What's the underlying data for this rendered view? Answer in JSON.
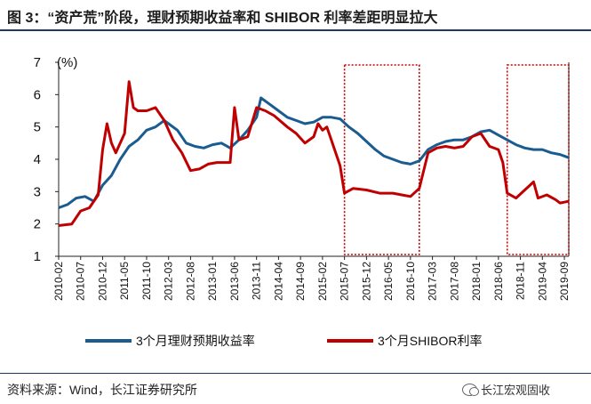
{
  "title": "图 3：“资产荒”阶段，理财预期收益率和 SHIBOR 利率差距明显拉大",
  "source": "资料来源：Wind，长江证券研究所",
  "watermark": "长江宏观固收",
  "chart_data": {
    "type": "line",
    "unit_label": "(%)",
    "ylim": [
      1,
      7
    ],
    "yticks": [
      1,
      2,
      3,
      4,
      5,
      6,
      7
    ],
    "x_start": "2010-02",
    "x_end": "2019-10",
    "xticks": [
      "2010-02",
      "2010-07",
      "2010-12",
      "2011-05",
      "2011-10",
      "2012-03",
      "2012-08",
      "2013-01",
      "2013-06",
      "2013-11",
      "2014-04",
      "2014-09",
      "2015-02",
      "2015-07",
      "2015-12",
      "2016-05",
      "2016-10",
      "2017-03",
      "2017-08",
      "2018-01",
      "2018-06",
      "2018-11",
      "2019-04",
      "2019-09"
    ],
    "highlight_ranges": [
      {
        "from": "2015-07",
        "to": "2016-12"
      },
      {
        "from": "2018-08",
        "to": "2019-10"
      }
    ],
    "colors": {
      "wealth": "#1a5c8f",
      "shibor": "#c00000",
      "highlight": "#c00000"
    },
    "series": [
      {
        "name": "3个月理财预期收益率",
        "color": "#1a5c8f",
        "points": [
          [
            "2010-02",
            2.5
          ],
          [
            "2010-04",
            2.6
          ],
          [
            "2010-06",
            2.8
          ],
          [
            "2010-08",
            2.85
          ],
          [
            "2010-10",
            2.7
          ],
          [
            "2010-12",
            3.2
          ],
          [
            "2011-02",
            3.5
          ],
          [
            "2011-04",
            4.0
          ],
          [
            "2011-06",
            4.4
          ],
          [
            "2011-08",
            4.6
          ],
          [
            "2011-10",
            4.9
          ],
          [
            "2011-12",
            5.0
          ],
          [
            "2012-02",
            5.2
          ],
          [
            "2012-03",
            5.1
          ],
          [
            "2012-05",
            4.9
          ],
          [
            "2012-07",
            4.5
          ],
          [
            "2012-09",
            4.4
          ],
          [
            "2012-11",
            4.35
          ],
          [
            "2013-01",
            4.45
          ],
          [
            "2013-03",
            4.5
          ],
          [
            "2013-05",
            4.35
          ],
          [
            "2013-07",
            4.6
          ],
          [
            "2013-09",
            4.9
          ],
          [
            "2013-11",
            5.3
          ],
          [
            "2013-12",
            5.9
          ],
          [
            "2014-02",
            5.7
          ],
          [
            "2014-04",
            5.5
          ],
          [
            "2014-06",
            5.3
          ],
          [
            "2014-08",
            5.2
          ],
          [
            "2014-10",
            5.1
          ],
          [
            "2014-12",
            5.15
          ],
          [
            "2015-02",
            5.3
          ],
          [
            "2015-04",
            5.3
          ],
          [
            "2015-06",
            5.25
          ],
          [
            "2015-08",
            5.0
          ],
          [
            "2015-10",
            4.8
          ],
          [
            "2015-12",
            4.55
          ],
          [
            "2016-02",
            4.3
          ],
          [
            "2016-04",
            4.1
          ],
          [
            "2016-06",
            4.0
          ],
          [
            "2016-08",
            3.9
          ],
          [
            "2016-10",
            3.85
          ],
          [
            "2016-12",
            3.95
          ],
          [
            "2017-02",
            4.3
          ],
          [
            "2017-04",
            4.45
          ],
          [
            "2017-06",
            4.55
          ],
          [
            "2017-08",
            4.6
          ],
          [
            "2017-10",
            4.6
          ],
          [
            "2017-12",
            4.7
          ],
          [
            "2018-02",
            4.85
          ],
          [
            "2018-04",
            4.9
          ],
          [
            "2018-06",
            4.75
          ],
          [
            "2018-08",
            4.6
          ],
          [
            "2018-10",
            4.45
          ],
          [
            "2018-12",
            4.35
          ],
          [
            "2019-02",
            4.3
          ],
          [
            "2019-04",
            4.3
          ],
          [
            "2019-06",
            4.2
          ],
          [
            "2019-08",
            4.15
          ],
          [
            "2019-10",
            4.05
          ]
        ]
      },
      {
        "name": "3个月SHIBOR利率",
        "color": "#c00000",
        "points": [
          [
            "2010-02",
            1.95
          ],
          [
            "2010-05",
            2.0
          ],
          [
            "2010-07",
            2.4
          ],
          [
            "2010-09",
            2.5
          ],
          [
            "2010-11",
            2.9
          ],
          [
            "2010-12",
            4.3
          ],
          [
            "2011-01",
            5.1
          ],
          [
            "2011-02",
            4.5
          ],
          [
            "2011-03",
            4.2
          ],
          [
            "2011-05",
            4.8
          ],
          [
            "2011-06",
            6.4
          ],
          [
            "2011-07",
            5.6
          ],
          [
            "2011-08",
            5.5
          ],
          [
            "2011-10",
            5.5
          ],
          [
            "2011-12",
            5.6
          ],
          [
            "2012-02",
            5.2
          ],
          [
            "2012-04",
            4.6
          ],
          [
            "2012-06",
            4.2
          ],
          [
            "2012-08",
            3.65
          ],
          [
            "2012-10",
            3.7
          ],
          [
            "2012-12",
            3.85
          ],
          [
            "2013-02",
            3.9
          ],
          [
            "2013-05",
            3.9
          ],
          [
            "2013-06",
            5.6
          ],
          [
            "2013-07",
            4.6
          ],
          [
            "2013-09",
            4.7
          ],
          [
            "2013-11",
            5.6
          ],
          [
            "2014-01",
            5.5
          ],
          [
            "2014-03",
            5.35
          ],
          [
            "2014-06",
            5.0
          ],
          [
            "2014-08",
            4.8
          ],
          [
            "2014-10",
            4.5
          ],
          [
            "2014-12",
            4.7
          ],
          [
            "2015-01",
            5.1
          ],
          [
            "2015-02",
            4.9
          ],
          [
            "2015-03",
            5.0
          ],
          [
            "2015-04",
            4.6
          ],
          [
            "2015-06",
            3.8
          ],
          [
            "2015-07",
            2.95
          ],
          [
            "2015-09",
            3.1
          ],
          [
            "2015-12",
            3.05
          ],
          [
            "2016-03",
            2.95
          ],
          [
            "2016-06",
            2.95
          ],
          [
            "2016-08",
            2.9
          ],
          [
            "2016-10",
            2.85
          ],
          [
            "2016-12",
            3.1
          ],
          [
            "2017-02",
            4.2
          ],
          [
            "2017-04",
            4.35
          ],
          [
            "2017-06",
            4.4
          ],
          [
            "2017-08",
            4.35
          ],
          [
            "2017-10",
            4.4
          ],
          [
            "2017-12",
            4.7
          ],
          [
            "2018-02",
            4.8
          ],
          [
            "2018-04",
            4.4
          ],
          [
            "2018-06",
            4.3
          ],
          [
            "2018-07",
            3.9
          ],
          [
            "2018-08",
            2.95
          ],
          [
            "2018-10",
            2.8
          ],
          [
            "2018-12",
            3.05
          ],
          [
            "2019-02",
            3.3
          ],
          [
            "2019-03",
            2.8
          ],
          [
            "2019-05",
            2.9
          ],
          [
            "2019-07",
            2.75
          ],
          [
            "2019-08",
            2.65
          ],
          [
            "2019-10",
            2.7
          ]
        ]
      }
    ]
  }
}
